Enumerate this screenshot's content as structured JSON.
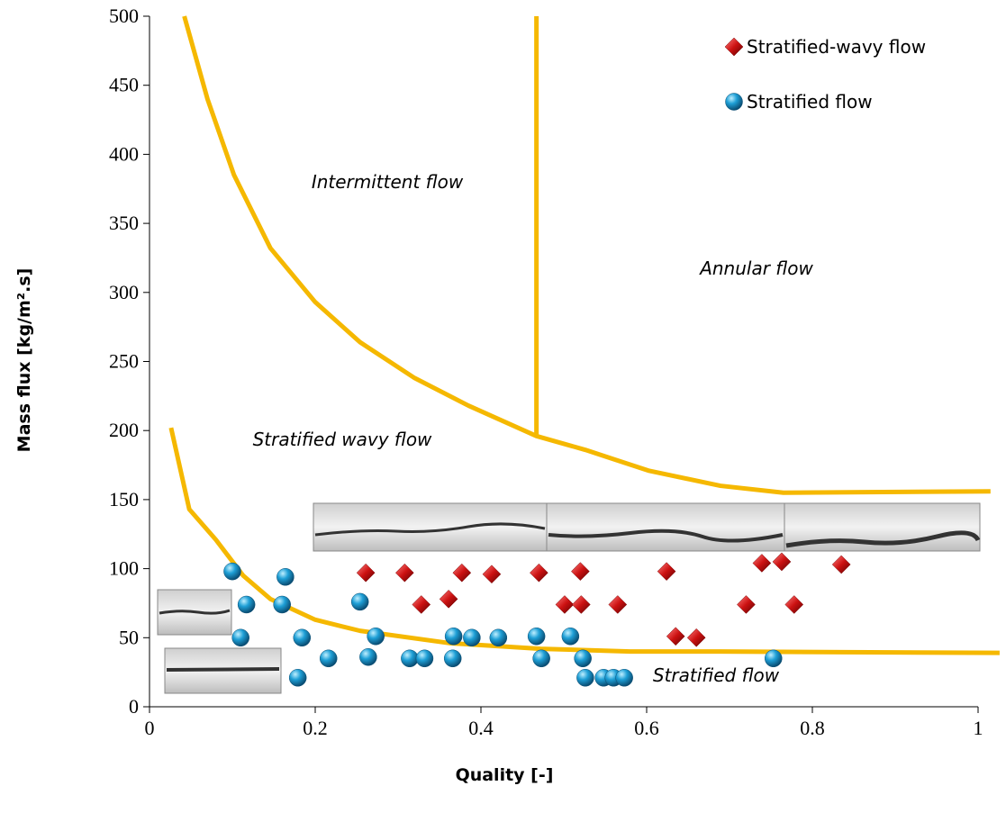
{
  "chart_data": {
    "type": "scatter",
    "xlabel": "Quality [-]",
    "ylabel": "Mass flux [kg/m².s]",
    "xlim": [
      0,
      1
    ],
    "ylim": [
      0,
      500
    ],
    "xticks": [
      0,
      0.2,
      0.4,
      0.6,
      0.8,
      1
    ],
    "yticks": [
      0,
      50,
      100,
      150,
      200,
      250,
      300,
      350,
      400,
      450,
      500
    ],
    "annotations": [
      "Intermittent flow",
      "Annular flow",
      "Stratified wavy flow",
      "Stratified flow"
    ],
    "series": [
      {
        "name": "Stratified-wavy flow",
        "color": "#cc1111",
        "marker": "diamond",
        "x": [
          0.261,
          0.308,
          0.377,
          0.413,
          0.47,
          0.52,
          0.328,
          0.361,
          0.501,
          0.521,
          0.565,
          0.624,
          0.635,
          0.66,
          0.72,
          0.739,
          0.763,
          0.778,
          0.835
        ],
        "y": [
          97,
          97,
          97,
          96,
          97,
          98,
          74,
          78,
          74,
          74,
          74,
          98,
          51,
          50,
          74,
          104,
          105,
          74,
          103
        ]
      },
      {
        "name": "Stratified flow",
        "color": "#1e9fd6",
        "marker": "circle",
        "x": [
          0.1,
          0.11,
          0.117,
          0.164,
          0.16,
          0.184,
          0.179,
          0.216,
          0.254,
          0.264,
          0.273,
          0.314,
          0.332,
          0.367,
          0.366,
          0.389,
          0.421,
          0.467,
          0.473,
          0.508,
          0.523,
          0.526,
          0.548,
          0.56,
          0.573,
          0.753
        ],
        "y": [
          98,
          50,
          74,
          94,
          74,
          50,
          21,
          35,
          76,
          36,
          51,
          35,
          35,
          51,
          35,
          50,
          50,
          51,
          35,
          51,
          35,
          21,
          21,
          21,
          21,
          35
        ]
      }
    ],
    "lines": [
      {
        "color": "#f5b800",
        "x": [
          0.042,
          0.07,
          0.102,
          0.146,
          0.2,
          0.254,
          0.32,
          0.385,
          0.467,
          0.526,
          0.602,
          0.689,
          0.765,
          1.015
        ],
        "y": [
          500,
          440,
          385,
          332,
          293,
          264,
          238,
          218,
          196,
          186,
          171,
          160,
          155,
          156
        ]
      },
      {
        "color": "#f5b800",
        "x": [
          0.467,
          0.467
        ],
        "y": [
          196,
          500
        ]
      },
      {
        "color": "#f5b800",
        "x": [
          0.026,
          0.048,
          0.08,
          0.113,
          0.146,
          0.2,
          0.254,
          0.363,
          0.472,
          0.58,
          0.689,
          1.026
        ],
        "y": [
          202,
          143,
          121,
          95,
          78,
          63,
          55,
          46,
          42,
          40,
          40,
          39
        ]
      }
    ]
  }
}
